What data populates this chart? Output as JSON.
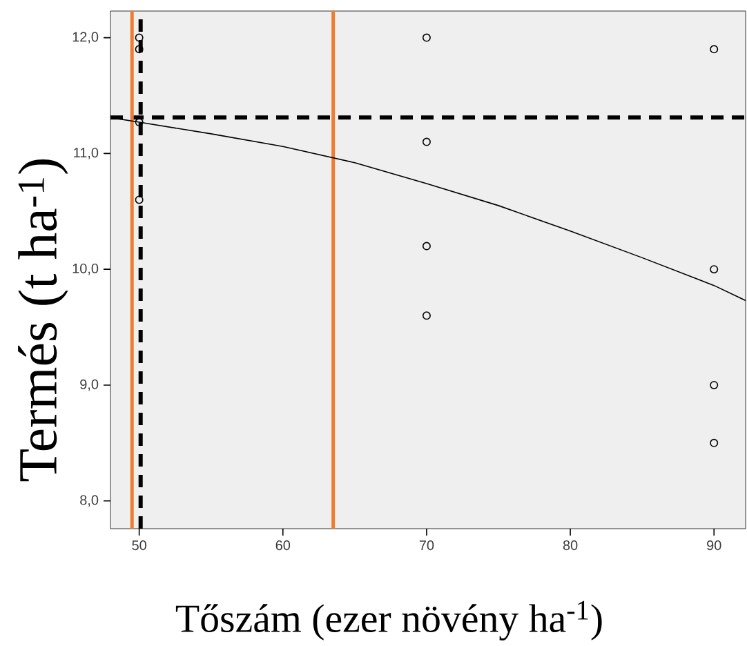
{
  "chart_data": {
    "type": "scatter",
    "xlabel": "Tőszám (ezer növény ha$^{-1}$)",
    "ylabel": "Termés (t ha$^{-1}$)",
    "xlim": [
      48.0,
      92.2
    ],
    "ylim": [
      7.76,
      12.23
    ],
    "xticks": [
      50,
      60,
      70,
      80,
      90
    ],
    "yticks": [
      {
        "value": 8,
        "label": "8,0"
      },
      {
        "value": 9,
        "label": "9,0"
      },
      {
        "value": 10,
        "label": "10,0"
      },
      {
        "value": 11,
        "label": "11,0"
      },
      {
        "value": 12,
        "label": "12,0"
      }
    ],
    "grid": false,
    "series": [
      {
        "color": "#000000",
        "marker": "circle",
        "x": [
          50,
          50,
          50,
          50,
          70,
          70,
          70,
          70,
          90,
          90,
          90,
          90
        ],
        "values": [
          12.0,
          11.9,
          11.27,
          10.6,
          12.0,
          11.1,
          10.2,
          9.6,
          11.9,
          10.0,
          9.0,
          8.5
        ]
      },
      {
        "type": "line",
        "color": "#000000",
        "marker": "none",
        "line_style": "solid",
        "x": [
          48,
          50,
          55,
          60,
          65,
          70,
          75,
          80,
          85,
          90,
          92.2
        ],
        "values": [
          11.31,
          11.27,
          11.17,
          11.06,
          10.92,
          10.74,
          10.55,
          10.33,
          10.1,
          9.86,
          9.73
        ]
      }
    ],
    "ref_lines": [
      {
        "axis": "y",
        "value": 11.31,
        "color": "#000000",
        "line_style": "dashed"
      },
      {
        "axis": "x",
        "value": 50.1,
        "color": "#000000",
        "line_style": "dashed"
      },
      {
        "axis": "x",
        "value": 49.5,
        "color": "#ed7d31",
        "line_style": "solid"
      },
      {
        "axis": "x",
        "value": 63.5,
        "color": "#ed7d31",
        "line_style": "solid"
      }
    ]
  }
}
